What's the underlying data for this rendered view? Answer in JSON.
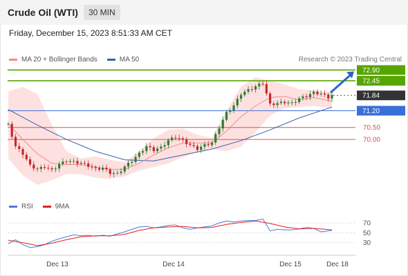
{
  "header": {
    "title": "Crude Oil (WTI)",
    "interval": "30 MIN"
  },
  "timestamp": "Friday, December 15, 2023 8:51:33 AM CET",
  "credit": "Research © 2023 Trading Central",
  "legend": {
    "ma20": "MA 20 + Bollinger Bands",
    "ma50": "MA 50",
    "rsi": "RSI",
    "rsi_ma": "9MA"
  },
  "colors": {
    "bollinger_fill": "#fde1e1",
    "ma20": "#f08a8a",
    "ma50": "#3a5fa8",
    "resistance": "#56a500",
    "support": "#d9534f",
    "pivot": "#3a6fd8",
    "current": "#333333",
    "candle_up": "#2e7d32",
    "candle_down": "#c62828",
    "rsi": "#4a7bd1",
    "rsi_ma": "#e01e1e"
  },
  "chart_data": [
    {
      "type": "candlestick",
      "x_ticks": [
        "Dec 13",
        "Dec 14",
        "Dec 15",
        "Dec 18"
      ],
      "levels": [
        {
          "value": 72.9,
          "label": "72.90",
          "kind": "resistance"
        },
        {
          "value": 72.45,
          "label": "72.45",
          "kind": "resistance"
        },
        {
          "value": 71.84,
          "label": "71.84",
          "kind": "current"
        },
        {
          "value": 71.2,
          "label": "71.20",
          "kind": "pivot"
        },
        {
          "value": 70.5,
          "label": "70.50",
          "kind": "support"
        },
        {
          "value": 70.0,
          "label": "70.00",
          "kind": "support"
        }
      ],
      "ylim": [
        68.1,
        73.0
      ],
      "annotation": "arrow pointing up toward 72.90",
      "close_path": [
        [
          0,
          70.6
        ],
        [
          2,
          69.7
        ],
        [
          4,
          69.4
        ],
        [
          6,
          68.9
        ],
        [
          8,
          68.75
        ],
        [
          10,
          68.85
        ],
        [
          12,
          68.7
        ],
        [
          14,
          68.95
        ],
        [
          16,
          69.1
        ],
        [
          18,
          69.05
        ],
        [
          20,
          69.0
        ],
        [
          22,
          68.9
        ],
        [
          24,
          68.75
        ],
        [
          26,
          68.8
        ],
        [
          28,
          68.6
        ],
        [
          30,
          68.55
        ],
        [
          32,
          68.85
        ],
        [
          34,
          69.1
        ],
        [
          36,
          69.4
        ],
        [
          38,
          69.7
        ],
        [
          40,
          69.55
        ],
        [
          42,
          69.65
        ],
        [
          44,
          69.95
        ],
        [
          46,
          70.1
        ],
        [
          48,
          69.95
        ],
        [
          50,
          69.75
        ],
        [
          52,
          69.6
        ],
        [
          54,
          69.75
        ],
        [
          56,
          69.85
        ],
        [
          58,
          70.5
        ],
        [
          60,
          71.1
        ],
        [
          62,
          71.4
        ],
        [
          64,
          71.9
        ],
        [
          66,
          72.05
        ],
        [
          68,
          72.2
        ],
        [
          70,
          72.35
        ],
        [
          72,
          71.45
        ],
        [
          74,
          71.5
        ],
        [
          76,
          71.55
        ],
        [
          78,
          71.5
        ],
        [
          80,
          71.7
        ],
        [
          82,
          71.8
        ],
        [
          84,
          71.95
        ],
        [
          86,
          71.9
        ],
        [
          88,
          71.75
        ],
        [
          89,
          71.84
        ]
      ],
      "ma20_path": [
        [
          0,
          70.65
        ],
        [
          4,
          70.0
        ],
        [
          8,
          69.4
        ],
        [
          12,
          69.0
        ],
        [
          16,
          68.95
        ],
        [
          20,
          68.95
        ],
        [
          24,
          68.85
        ],
        [
          28,
          68.75
        ],
        [
          32,
          68.75
        ],
        [
          36,
          69.0
        ],
        [
          40,
          69.35
        ],
        [
          44,
          69.65
        ],
        [
          48,
          69.85
        ],
        [
          52,
          69.85
        ],
        [
          56,
          69.85
        ],
        [
          60,
          70.35
        ],
        [
          64,
          70.95
        ],
        [
          68,
          71.4
        ],
        [
          72,
          71.75
        ],
        [
          76,
          71.8
        ],
        [
          80,
          71.65
        ],
        [
          84,
          71.75
        ],
        [
          89,
          71.6
        ]
      ],
      "ma50_path": [
        [
          0,
          71.25
        ],
        [
          8,
          70.6
        ],
        [
          16,
          70.0
        ],
        [
          24,
          69.5
        ],
        [
          32,
          69.15
        ],
        [
          40,
          69.1
        ],
        [
          48,
          69.35
        ],
        [
          56,
          69.6
        ],
        [
          64,
          69.95
        ],
        [
          72,
          70.4
        ],
        [
          80,
          70.9
        ],
        [
          89,
          71.35
        ]
      ],
      "bollinger_upper": [
        [
          0,
          72.0
        ],
        [
          4,
          72.2
        ],
        [
          8,
          71.9
        ],
        [
          12,
          70.6
        ],
        [
          16,
          69.5
        ],
        [
          20,
          69.2
        ],
        [
          24,
          69.3
        ],
        [
          28,
          69.15
        ],
        [
          32,
          69.05
        ],
        [
          36,
          69.5
        ],
        [
          40,
          70.05
        ],
        [
          44,
          70.4
        ],
        [
          48,
          70.45
        ],
        [
          52,
          70.2
        ],
        [
          56,
          70.05
        ],
        [
          60,
          71.2
        ],
        [
          64,
          72.2
        ],
        [
          68,
          72.6
        ],
        [
          72,
          72.45
        ],
        [
          76,
          72.3
        ],
        [
          80,
          72.1
        ],
        [
          84,
          72.05
        ],
        [
          89,
          71.95
        ]
      ],
      "bollinger_lower": [
        [
          0,
          69.2
        ],
        [
          4,
          68.5
        ],
        [
          8,
          68.1
        ],
        [
          12,
          68.3
        ],
        [
          16,
          68.55
        ],
        [
          20,
          68.55
        ],
        [
          24,
          68.4
        ],
        [
          28,
          68.35
        ],
        [
          32,
          68.45
        ],
        [
          36,
          68.7
        ],
        [
          40,
          68.85
        ],
        [
          44,
          69.0
        ],
        [
          48,
          69.25
        ],
        [
          52,
          69.5
        ],
        [
          56,
          69.6
        ],
        [
          60,
          69.5
        ],
        [
          64,
          69.7
        ],
        [
          68,
          70.3
        ],
        [
          72,
          71.0
        ],
        [
          76,
          71.3
        ],
        [
          80,
          71.35
        ],
        [
          84,
          71.4
        ],
        [
          89,
          71.3
        ]
      ]
    },
    {
      "type": "line",
      "series_names": [
        "RSI",
        "9MA"
      ],
      "y_ticks": [
        70,
        50,
        30
      ],
      "ylim": [
        10,
        80
      ],
      "x_ticks": [
        "Dec 13",
        "Dec 14",
        "Dec 15",
        "Dec 18"
      ],
      "rsi": [
        [
          0,
          28
        ],
        [
          2,
          36
        ],
        [
          4,
          26
        ],
        [
          6,
          20
        ],
        [
          8,
          22
        ],
        [
          10,
          26
        ],
        [
          12,
          33
        ],
        [
          14,
          38
        ],
        [
          16,
          42
        ],
        [
          18,
          46
        ],
        [
          20,
          44
        ],
        [
          22,
          45
        ],
        [
          24,
          43
        ],
        [
          26,
          45
        ],
        [
          28,
          43
        ],
        [
          30,
          48
        ],
        [
          32,
          52
        ],
        [
          34,
          57
        ],
        [
          36,
          62
        ],
        [
          38,
          63
        ],
        [
          40,
          60
        ],
        [
          42,
          62
        ],
        [
          44,
          65
        ],
        [
          46,
          66
        ],
        [
          48,
          60
        ],
        [
          50,
          57
        ],
        [
          52,
          60
        ],
        [
          54,
          62
        ],
        [
          56,
          64
        ],
        [
          58,
          70
        ],
        [
          60,
          74
        ],
        [
          62,
          72
        ],
        [
          64,
          74
        ],
        [
          66,
          75
        ],
        [
          68,
          75
        ],
        [
          70,
          78
        ],
        [
          72,
          54
        ],
        [
          74,
          57
        ],
        [
          76,
          56
        ],
        [
          78,
          56
        ],
        [
          80,
          58
        ],
        [
          82,
          61
        ],
        [
          84,
          59
        ],
        [
          86,
          52
        ],
        [
          88,
          54
        ],
        [
          89,
          55
        ]
      ],
      "rsi_ma": [
        [
          0,
          35
        ],
        [
          4,
          30
        ],
        [
          8,
          24
        ],
        [
          12,
          29
        ],
        [
          16,
          36
        ],
        [
          20,
          42
        ],
        [
          24,
          44
        ],
        [
          28,
          44
        ],
        [
          32,
          47
        ],
        [
          36,
          55
        ],
        [
          40,
          60
        ],
        [
          44,
          62
        ],
        [
          48,
          63
        ],
        [
          52,
          60
        ],
        [
          56,
          61
        ],
        [
          60,
          67
        ],
        [
          64,
          71
        ],
        [
          68,
          74
        ],
        [
          72,
          69
        ],
        [
          76,
          62
        ],
        [
          80,
          58
        ],
        [
          84,
          59
        ],
        [
          89,
          56
        ]
      ]
    }
  ]
}
